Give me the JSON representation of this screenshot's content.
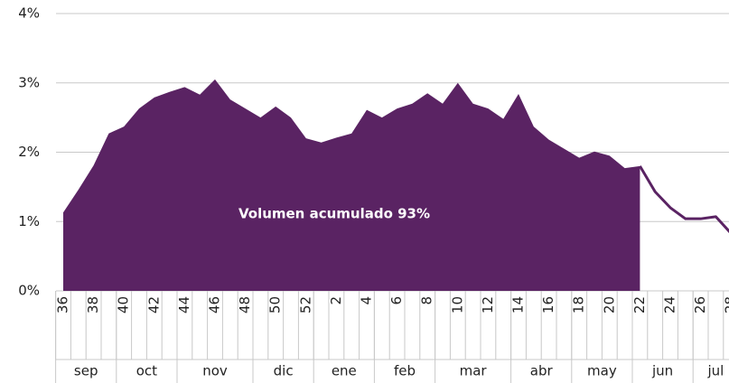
{
  "chart_data": {
    "type": "area",
    "annotation": "Volumen acumulado 93%",
    "categories": [
      "36",
      null,
      "38",
      null,
      "40",
      null,
      "42",
      null,
      "44",
      null,
      "46",
      null,
      "48",
      null,
      "50",
      null,
      "52",
      null,
      "2",
      null,
      "4",
      null,
      "6",
      null,
      "8",
      null,
      "10",
      null,
      "12",
      null,
      "14",
      null,
      "16",
      null,
      "18",
      null,
      "20",
      null,
      "22",
      null,
      "24",
      null,
      "26",
      null,
      "28"
    ],
    "months": [
      "sep",
      "oct",
      "nov",
      "dic",
      "ene",
      "feb",
      "mar",
      "abr",
      "may",
      "jun",
      "jul"
    ],
    "series": [
      {
        "color": "#5a2363",
        "values": [
          1.13,
          1.46,
          1.81,
          2.27,
          2.37,
          2.63,
          2.79,
          2.87,
          2.94,
          2.83,
          3.05,
          2.76,
          2.63,
          2.5,
          2.66,
          2.5,
          2.2,
          2.14,
          2.21,
          2.27,
          2.61,
          2.5,
          2.63,
          2.7,
          2.85,
          2.7,
          3.0,
          2.7,
          2.63,
          2.48,
          2.84,
          2.37,
          2.18,
          2.05,
          1.92,
          2.01,
          1.95,
          1.77,
          1.8,
          null,
          null,
          null,
          null,
          null,
          null
        ]
      },
      {
        "color": "#5a2363",
        "values": [
          null,
          null,
          null,
          null,
          null,
          null,
          null,
          null,
          null,
          null,
          null,
          null,
          null,
          null,
          null,
          null,
          null,
          null,
          null,
          null,
          null,
          null,
          null,
          null,
          null,
          null,
          null,
          null,
          null,
          null,
          null,
          null,
          null,
          null,
          null,
          null,
          null,
          null,
          1.8,
          1.43,
          1.2,
          1.04,
          1.04,
          1.07,
          0.83
        ]
      }
    ],
    "ylim": [
      0,
      4
    ],
    "yticks": [
      {
        "value": 0,
        "label": "0%"
      },
      {
        "value": 1,
        "label": "1%"
      },
      {
        "value": 2,
        "label": "2%"
      },
      {
        "value": 3,
        "label": "3%"
      },
      {
        "value": 4,
        "label": "4%"
      }
    ],
    "grid": true
  }
}
